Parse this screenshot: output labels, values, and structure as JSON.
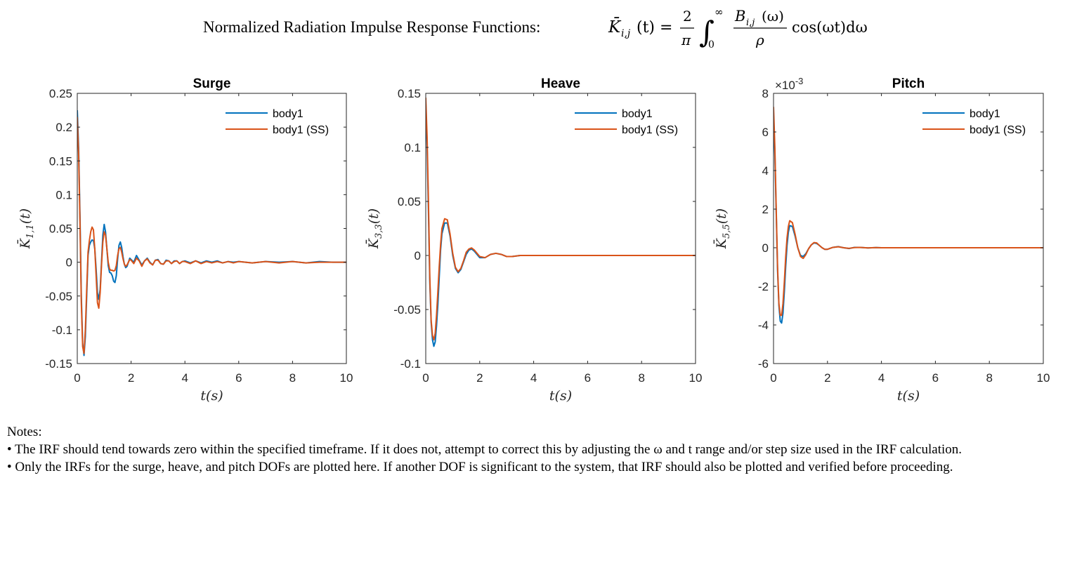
{
  "figure": {
    "title_prefix": "Normalized Radiation Impulse Response Functions:",
    "formula": {
      "lhs": "K̄",
      "lhs_sub": "i,j",
      "lhs_arg": "(t) =",
      "frac_num": "2",
      "frac_den": "π",
      "integral": "∫",
      "upper": "∞",
      "lower": "0",
      "integrand_num": "B",
      "integrand_num_sub": "i,j",
      "integrand_num_arg": "(ω)",
      "integrand_den": "ρ",
      "tail": "cos(ωt)dω"
    }
  },
  "colors": {
    "series1": "#0072BD",
    "series2": "#D95319",
    "axis": "#262626"
  },
  "chart_data": [
    {
      "type": "line",
      "title": "Surge",
      "xlabel": "t(s)",
      "ylabel_symbol": "K̄",
      "ylabel_sub": "1,1",
      "ylabel_arg": "(t)",
      "xlim": [
        0,
        10
      ],
      "ylim": [
        -0.15,
        0.25
      ],
      "xticks": [
        0,
        2,
        4,
        6,
        8,
        10
      ],
      "yticks": [
        -0.15,
        -0.1,
        -0.05,
        0,
        0.05,
        0.1,
        0.15,
        0.2,
        0.25
      ],
      "ytick_labels": [
        "-0.15",
        "-0.1",
        "-0.05",
        "0",
        "0.05",
        "0.1",
        "0.15",
        "0.2",
        "0.25"
      ],
      "exponent_label": "",
      "legend": "top-right",
      "series": [
        {
          "name": "body1",
          "x": [
            0,
            0.05,
            0.1,
            0.15,
            0.2,
            0.25,
            0.3,
            0.35,
            0.4,
            0.45,
            0.5,
            0.55,
            0.6,
            0.65,
            0.7,
            0.75,
            0.8,
            0.85,
            0.9,
            0.95,
            1.0,
            1.05,
            1.1,
            1.15,
            1.2,
            1.25,
            1.3,
            1.35,
            1.4,
            1.45,
            1.5,
            1.55,
            1.6,
            1.65,
            1.7,
            1.75,
            1.8,
            1.85,
            1.9,
            1.95,
            2.0,
            2.1,
            2.2,
            2.3,
            2.4,
            2.5,
            2.6,
            2.7,
            2.8,
            2.9,
            3.0,
            3.1,
            3.2,
            3.3,
            3.4,
            3.5,
            3.6,
            3.7,
            3.8,
            3.9,
            4.0,
            4.2,
            4.4,
            4.6,
            4.8,
            5.0,
            5.2,
            5.4,
            5.6,
            5.8,
            6.0,
            6.5,
            7.0,
            7.5,
            8.0,
            8.5,
            9.0,
            9.5,
            10.0
          ],
          "y": [
            0.225,
            0.17,
            0.07,
            -0.05,
            -0.12,
            -0.138,
            -0.11,
            -0.05,
            0.01,
            0.025,
            0.03,
            0.033,
            0.032,
            0.02,
            -0.01,
            -0.045,
            -0.055,
            -0.04,
            0.0,
            0.04,
            0.056,
            0.045,
            0.02,
            -0.005,
            -0.015,
            -0.016,
            -0.02,
            -0.028,
            -0.03,
            -0.02,
            0.005,
            0.025,
            0.03,
            0.022,
            0.008,
            -0.003,
            -0.008,
            -0.006,
            0.0,
            0.006,
            0.004,
            0.0,
            0.01,
            0.003,
            -0.004,
            0.002,
            0.006,
            0.0,
            -0.004,
            0.003,
            0.004,
            -0.002,
            -0.003,
            0.003,
            0.002,
            -0.002,
            0.002,
            0.002,
            -0.002,
            0.001,
            0.002,
            -0.001,
            0.002,
            -0.001,
            0.002,
            0.0,
            0.002,
            -0.001,
            0.001,
            0.0,
            0.001,
            -0.001,
            0.001,
            0.0,
            0.001,
            -0.001,
            0.001,
            0.0,
            0.0
          ]
        },
        {
          "name": "body1 (SS)",
          "x": [
            0,
            0.05,
            0.1,
            0.15,
            0.2,
            0.25,
            0.3,
            0.35,
            0.4,
            0.45,
            0.5,
            0.55,
            0.6,
            0.65,
            0.7,
            0.75,
            0.8,
            0.85,
            0.9,
            0.95,
            1.0,
            1.05,
            1.1,
            1.15,
            1.2,
            1.25,
            1.3,
            1.35,
            1.4,
            1.45,
            1.5,
            1.55,
            1.6,
            1.65,
            1.7,
            1.75,
            1.8,
            1.85,
            1.9,
            1.95,
            2.0,
            2.1,
            2.2,
            2.3,
            2.4,
            2.5,
            2.6,
            2.7,
            2.8,
            2.9,
            3.0,
            3.1,
            3.2,
            3.3,
            3.4,
            3.5,
            3.6,
            3.7,
            3.8,
            3.9,
            4.0,
            4.2,
            4.4,
            4.6,
            4.8,
            5.0,
            5.2,
            5.4,
            5.6,
            5.8,
            6.0,
            6.5,
            7.0,
            7.5,
            8.0,
            8.5,
            9.0,
            9.5,
            10.0
          ],
          "y": [
            0.215,
            0.16,
            0.06,
            -0.06,
            -0.125,
            -0.135,
            -0.1,
            -0.04,
            0.015,
            0.032,
            0.045,
            0.052,
            0.048,
            0.02,
            -0.02,
            -0.06,
            -0.068,
            -0.045,
            -0.005,
            0.03,
            0.045,
            0.04,
            0.02,
            0.0,
            -0.01,
            -0.012,
            -0.012,
            -0.013,
            -0.012,
            -0.005,
            0.01,
            0.02,
            0.022,
            0.015,
            0.005,
            -0.003,
            -0.006,
            -0.004,
            0.0,
            0.004,
            0.003,
            -0.002,
            0.006,
            0.002,
            -0.006,
            0.002,
            0.005,
            -0.001,
            -0.004,
            0.003,
            0.003,
            -0.002,
            -0.003,
            0.002,
            0.002,
            -0.002,
            0.001,
            0.002,
            -0.002,
            0.001,
            0.001,
            -0.002,
            0.002,
            -0.002,
            0.001,
            -0.001,
            0.001,
            -0.001,
            0.001,
            -0.001,
            0.001,
            -0.001,
            0.001,
            -0.001,
            0.001,
            -0.001,
            0.0,
            0.0,
            0.0
          ]
        }
      ]
    },
    {
      "type": "line",
      "title": "Heave",
      "xlabel": "t(s)",
      "ylabel_symbol": "K̄",
      "ylabel_sub": "3,3",
      "ylabel_arg": "(t)",
      "xlim": [
        0,
        10
      ],
      "ylim": [
        -0.1,
        0.15
      ],
      "xticks": [
        0,
        2,
        4,
        6,
        8,
        10
      ],
      "yticks": [
        -0.1,
        -0.05,
        0,
        0.05,
        0.1,
        0.15
      ],
      "ytick_labels": [
        "-0.1",
        "-0.05",
        "0",
        "0.05",
        "0.1",
        "0.15"
      ],
      "exponent_label": "",
      "legend": "top-right",
      "series": [
        {
          "name": "body1",
          "x": [
            0,
            0.05,
            0.1,
            0.15,
            0.2,
            0.25,
            0.3,
            0.35,
            0.4,
            0.45,
            0.5,
            0.55,
            0.6,
            0.7,
            0.8,
            0.9,
            1.0,
            1.1,
            1.2,
            1.3,
            1.4,
            1.5,
            1.6,
            1.7,
            1.8,
            1.9,
            2.0,
            2.2,
            2.4,
            2.6,
            2.8,
            3.0,
            3.2,
            3.5,
            3.8,
            4.0,
            5.0,
            6.0,
            7.0,
            8.0,
            9.0,
            10.0
          ],
          "y": [
            0.14,
            0.1,
            0.04,
            -0.025,
            -0.062,
            -0.078,
            -0.084,
            -0.08,
            -0.065,
            -0.045,
            -0.02,
            0.005,
            0.02,
            0.03,
            0.03,
            0.018,
            0.0,
            -0.012,
            -0.016,
            -0.013,
            -0.006,
            0.001,
            0.005,
            0.006,
            0.004,
            0.001,
            -0.002,
            -0.002,
            0.001,
            0.002,
            0.001,
            -0.001,
            -0.001,
            0.0,
            0.0,
            0.0,
            0.0,
            0.0,
            0.0,
            0.0,
            0.0,
            0.0
          ]
        },
        {
          "name": "body1 (SS)",
          "x": [
            0,
            0.05,
            0.1,
            0.15,
            0.2,
            0.25,
            0.3,
            0.35,
            0.4,
            0.45,
            0.5,
            0.55,
            0.6,
            0.7,
            0.8,
            0.9,
            1.0,
            1.1,
            1.2,
            1.3,
            1.4,
            1.5,
            1.6,
            1.7,
            1.8,
            1.9,
            2.0,
            2.2,
            2.4,
            2.6,
            2.8,
            3.0,
            3.2,
            3.5,
            3.8,
            4.0,
            5.0,
            6.0,
            7.0,
            8.0,
            9.0,
            10.0
          ],
          "y": [
            0.146,
            0.11,
            0.05,
            -0.02,
            -0.06,
            -0.074,
            -0.078,
            -0.072,
            -0.055,
            -0.033,
            -0.01,
            0.01,
            0.025,
            0.034,
            0.033,
            0.02,
            0.002,
            -0.011,
            -0.015,
            -0.012,
            -0.005,
            0.003,
            0.006,
            0.007,
            0.005,
            0.002,
            -0.001,
            -0.002,
            0.001,
            0.002,
            0.001,
            -0.001,
            -0.001,
            0.0,
            0.0,
            0.0,
            0.0,
            0.0,
            0.0,
            0.0,
            0.0,
            0.0
          ]
        }
      ]
    },
    {
      "type": "line",
      "title": "Pitch",
      "xlabel": "t(s)",
      "ylabel_symbol": "K̄",
      "ylabel_sub": "5,5",
      "ylabel_arg": "(t)",
      "xlim": [
        0,
        10
      ],
      "ylim": [
        -6,
        8
      ],
      "xticks": [
        0,
        2,
        4,
        6,
        8,
        10
      ],
      "yticks": [
        -6,
        -4,
        -2,
        0,
        2,
        4,
        6,
        8
      ],
      "ytick_labels": [
        "-6",
        "-4",
        "-2",
        "0",
        "2",
        "4",
        "6",
        "8"
      ],
      "exponent_label": "×10",
      "exponent_power": "-3",
      "legend": "top-right",
      "series": [
        {
          "name": "body1",
          "x": [
            0,
            0.05,
            0.1,
            0.15,
            0.2,
            0.25,
            0.3,
            0.35,
            0.4,
            0.45,
            0.5,
            0.55,
            0.6,
            0.7,
            0.8,
            0.9,
            1.0,
            1.1,
            1.2,
            1.3,
            1.4,
            1.5,
            1.6,
            1.7,
            1.8,
            1.9,
            2.0,
            2.2,
            2.4,
            2.6,
            2.8,
            3.0,
            3.2,
            3.5,
            3.8,
            4.0,
            5.0,
            6.0,
            7.0,
            8.0,
            9.0,
            10.0
          ],
          "y": [
            6.8,
            4.8,
            1.8,
            -1.2,
            -3.0,
            -3.8,
            -3.9,
            -3.4,
            -2.3,
            -1.0,
            0.1,
            0.8,
            1.15,
            1.1,
            0.6,
            0.0,
            -0.4,
            -0.45,
            -0.3,
            -0.05,
            0.15,
            0.25,
            0.22,
            0.12,
            0.0,
            -0.08,
            -0.08,
            0.02,
            0.06,
            0.0,
            -0.04,
            0.02,
            0.02,
            -0.01,
            0.01,
            0.0,
            0.0,
            0.0,
            0.0,
            0.0,
            0.0,
            0.0
          ]
        },
        {
          "name": "body1 (SS)",
          "x": [
            0,
            0.05,
            0.1,
            0.15,
            0.2,
            0.25,
            0.3,
            0.35,
            0.4,
            0.45,
            0.5,
            0.55,
            0.6,
            0.7,
            0.8,
            0.9,
            1.0,
            1.1,
            1.2,
            1.3,
            1.4,
            1.5,
            1.6,
            1.7,
            1.8,
            1.9,
            2.0,
            2.2,
            2.4,
            2.6,
            2.8,
            3.0,
            3.2,
            3.5,
            3.8,
            4.0,
            5.0,
            6.0,
            7.0,
            8.0,
            9.0,
            10.0
          ],
          "y": [
            7.3,
            5.2,
            2.0,
            -1.0,
            -2.9,
            -3.5,
            -3.5,
            -2.9,
            -1.8,
            -0.5,
            0.5,
            1.1,
            1.4,
            1.3,
            0.7,
            0.0,
            -0.45,
            -0.55,
            -0.35,
            -0.05,
            0.15,
            0.27,
            0.25,
            0.12,
            0.0,
            -0.08,
            -0.08,
            0.02,
            0.05,
            0.0,
            -0.03,
            0.01,
            0.02,
            -0.01,
            0.01,
            0.0,
            0.0,
            0.0,
            0.0,
            0.0,
            0.0,
            0.0
          ]
        }
      ]
    }
  ],
  "notes": {
    "heading": "Notes:",
    "items": [
      "• The IRF should tend towards zero within the specified timeframe. If it does not, attempt to correct this by adjusting the ω and t range and/or step size used in the IRF calculation.",
      "• Only the IRFs for the surge, heave, and pitch DOFs are plotted here. If another DOF is significant to the system, that IRF should also be plotted and verified before proceeding."
    ]
  }
}
